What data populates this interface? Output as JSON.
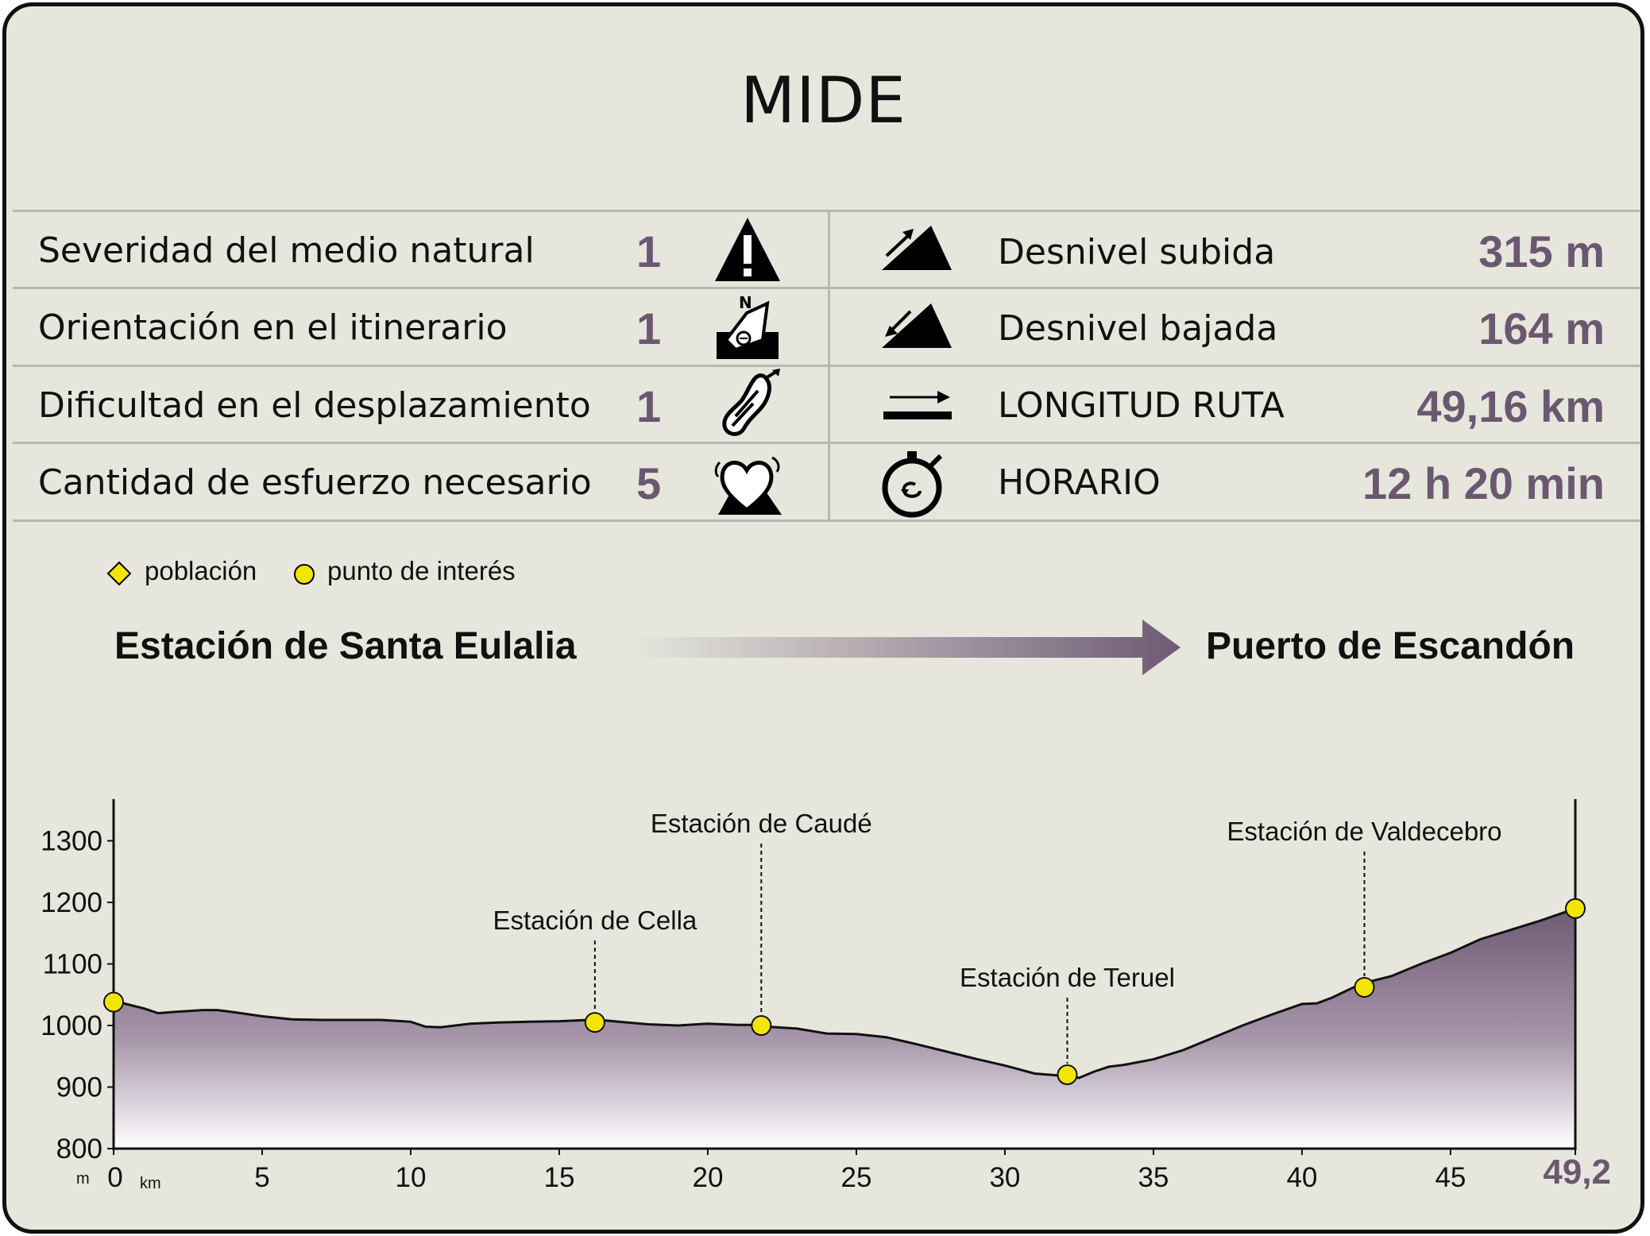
{
  "title": "MIDE",
  "mide": [
    {
      "label": "Severidad del medio natural",
      "value": "1",
      "icon": "warning-icon"
    },
    {
      "label": "Orientación en el itinerario",
      "value": "1",
      "icon": "orientation-icon"
    },
    {
      "label": "Dificultad en el desplazamiento",
      "value": "1",
      "icon": "footprint-icon"
    },
    {
      "label": "Cantidad de esfuerzo necesario",
      "value": "5",
      "icon": "effort-heart-icon"
    }
  ],
  "stats": [
    {
      "label": "Desnivel subida",
      "value": "315 m",
      "icon": "ascent-icon"
    },
    {
      "label": "Desnivel bajada",
      "value": "164 m",
      "icon": "descent-icon"
    },
    {
      "label": "LONGITUD RUTA",
      "value": "49,16 km",
      "icon": "distance-arrow-icon"
    },
    {
      "label": "HORARIO",
      "value": "12 h 20 min",
      "icon": "stopwatch-icon"
    }
  ],
  "legend": {
    "town": "población",
    "poi": "punto de interés"
  },
  "route": {
    "start": "Estación de Santa Eulalia",
    "end": "Puerto de Escandón"
  },
  "colors": {
    "accent": "#6b5870",
    "marker": "#f2e600",
    "profile_top": "#6e5a74",
    "profile_bottom": "#ffffff"
  },
  "chart_data": {
    "type": "area",
    "ylabel": "m",
    "xlabel": "km",
    "xlim": [
      0,
      49.2
    ],
    "ylim": [
      800,
      1350
    ],
    "yticks": [
      800,
      900,
      1000,
      1100,
      1200,
      1300
    ],
    "xticks": [
      0,
      5,
      10,
      15,
      20,
      25,
      30,
      35,
      40,
      45
    ],
    "x_end_label": "49,2",
    "x": [
      0,
      1,
      1.5,
      2,
      3,
      3.5,
      4,
      5,
      6,
      7,
      8,
      9,
      10,
      10.5,
      11,
      12,
      13,
      14,
      15,
      16,
      16.2,
      17,
      18,
      19,
      20,
      21,
      21.8,
      22,
      23,
      24,
      25,
      26,
      27,
      28,
      29,
      30,
      31,
      32,
      32.5,
      33,
      33.5,
      34,
      35,
      36,
      37,
      38,
      39,
      40,
      40.5,
      41,
      42,
      43,
      44,
      45,
      46,
      47,
      48,
      49.2
    ],
    "y": [
      1040,
      1028,
      1020,
      1022,
      1025,
      1025,
      1022,
      1015,
      1010,
      1009,
      1009,
      1009,
      1006,
      998,
      997,
      1003,
      1005,
      1006,
      1007,
      1009,
      1010,
      1006,
      1002,
      1000,
      1003,
      1001,
      1001,
      998,
      995,
      987,
      986,
      981,
      970,
      958,
      946,
      935,
      922,
      918,
      915,
      925,
      933,
      936,
      945,
      960,
      980,
      1000,
      1018,
      1035,
      1036,
      1045,
      1068,
      1080,
      1100,
      1118,
      1140,
      1155,
      1170,
      1190
    ],
    "points": [
      {
        "x": 0,
        "y": 1038,
        "label": ""
      },
      {
        "x": 16.2,
        "y": 1005,
        "label": "Estación de Cella"
      },
      {
        "x": 21.8,
        "y": 1000,
        "label": "Estación de Caudé"
      },
      {
        "x": 32.1,
        "y": 920,
        "label": "Estación de Teruel"
      },
      {
        "x": 42.1,
        "y": 1062,
        "label": "Estación de Valdecebro"
      },
      {
        "x": 49.2,
        "y": 1190,
        "label": ""
      }
    ]
  }
}
